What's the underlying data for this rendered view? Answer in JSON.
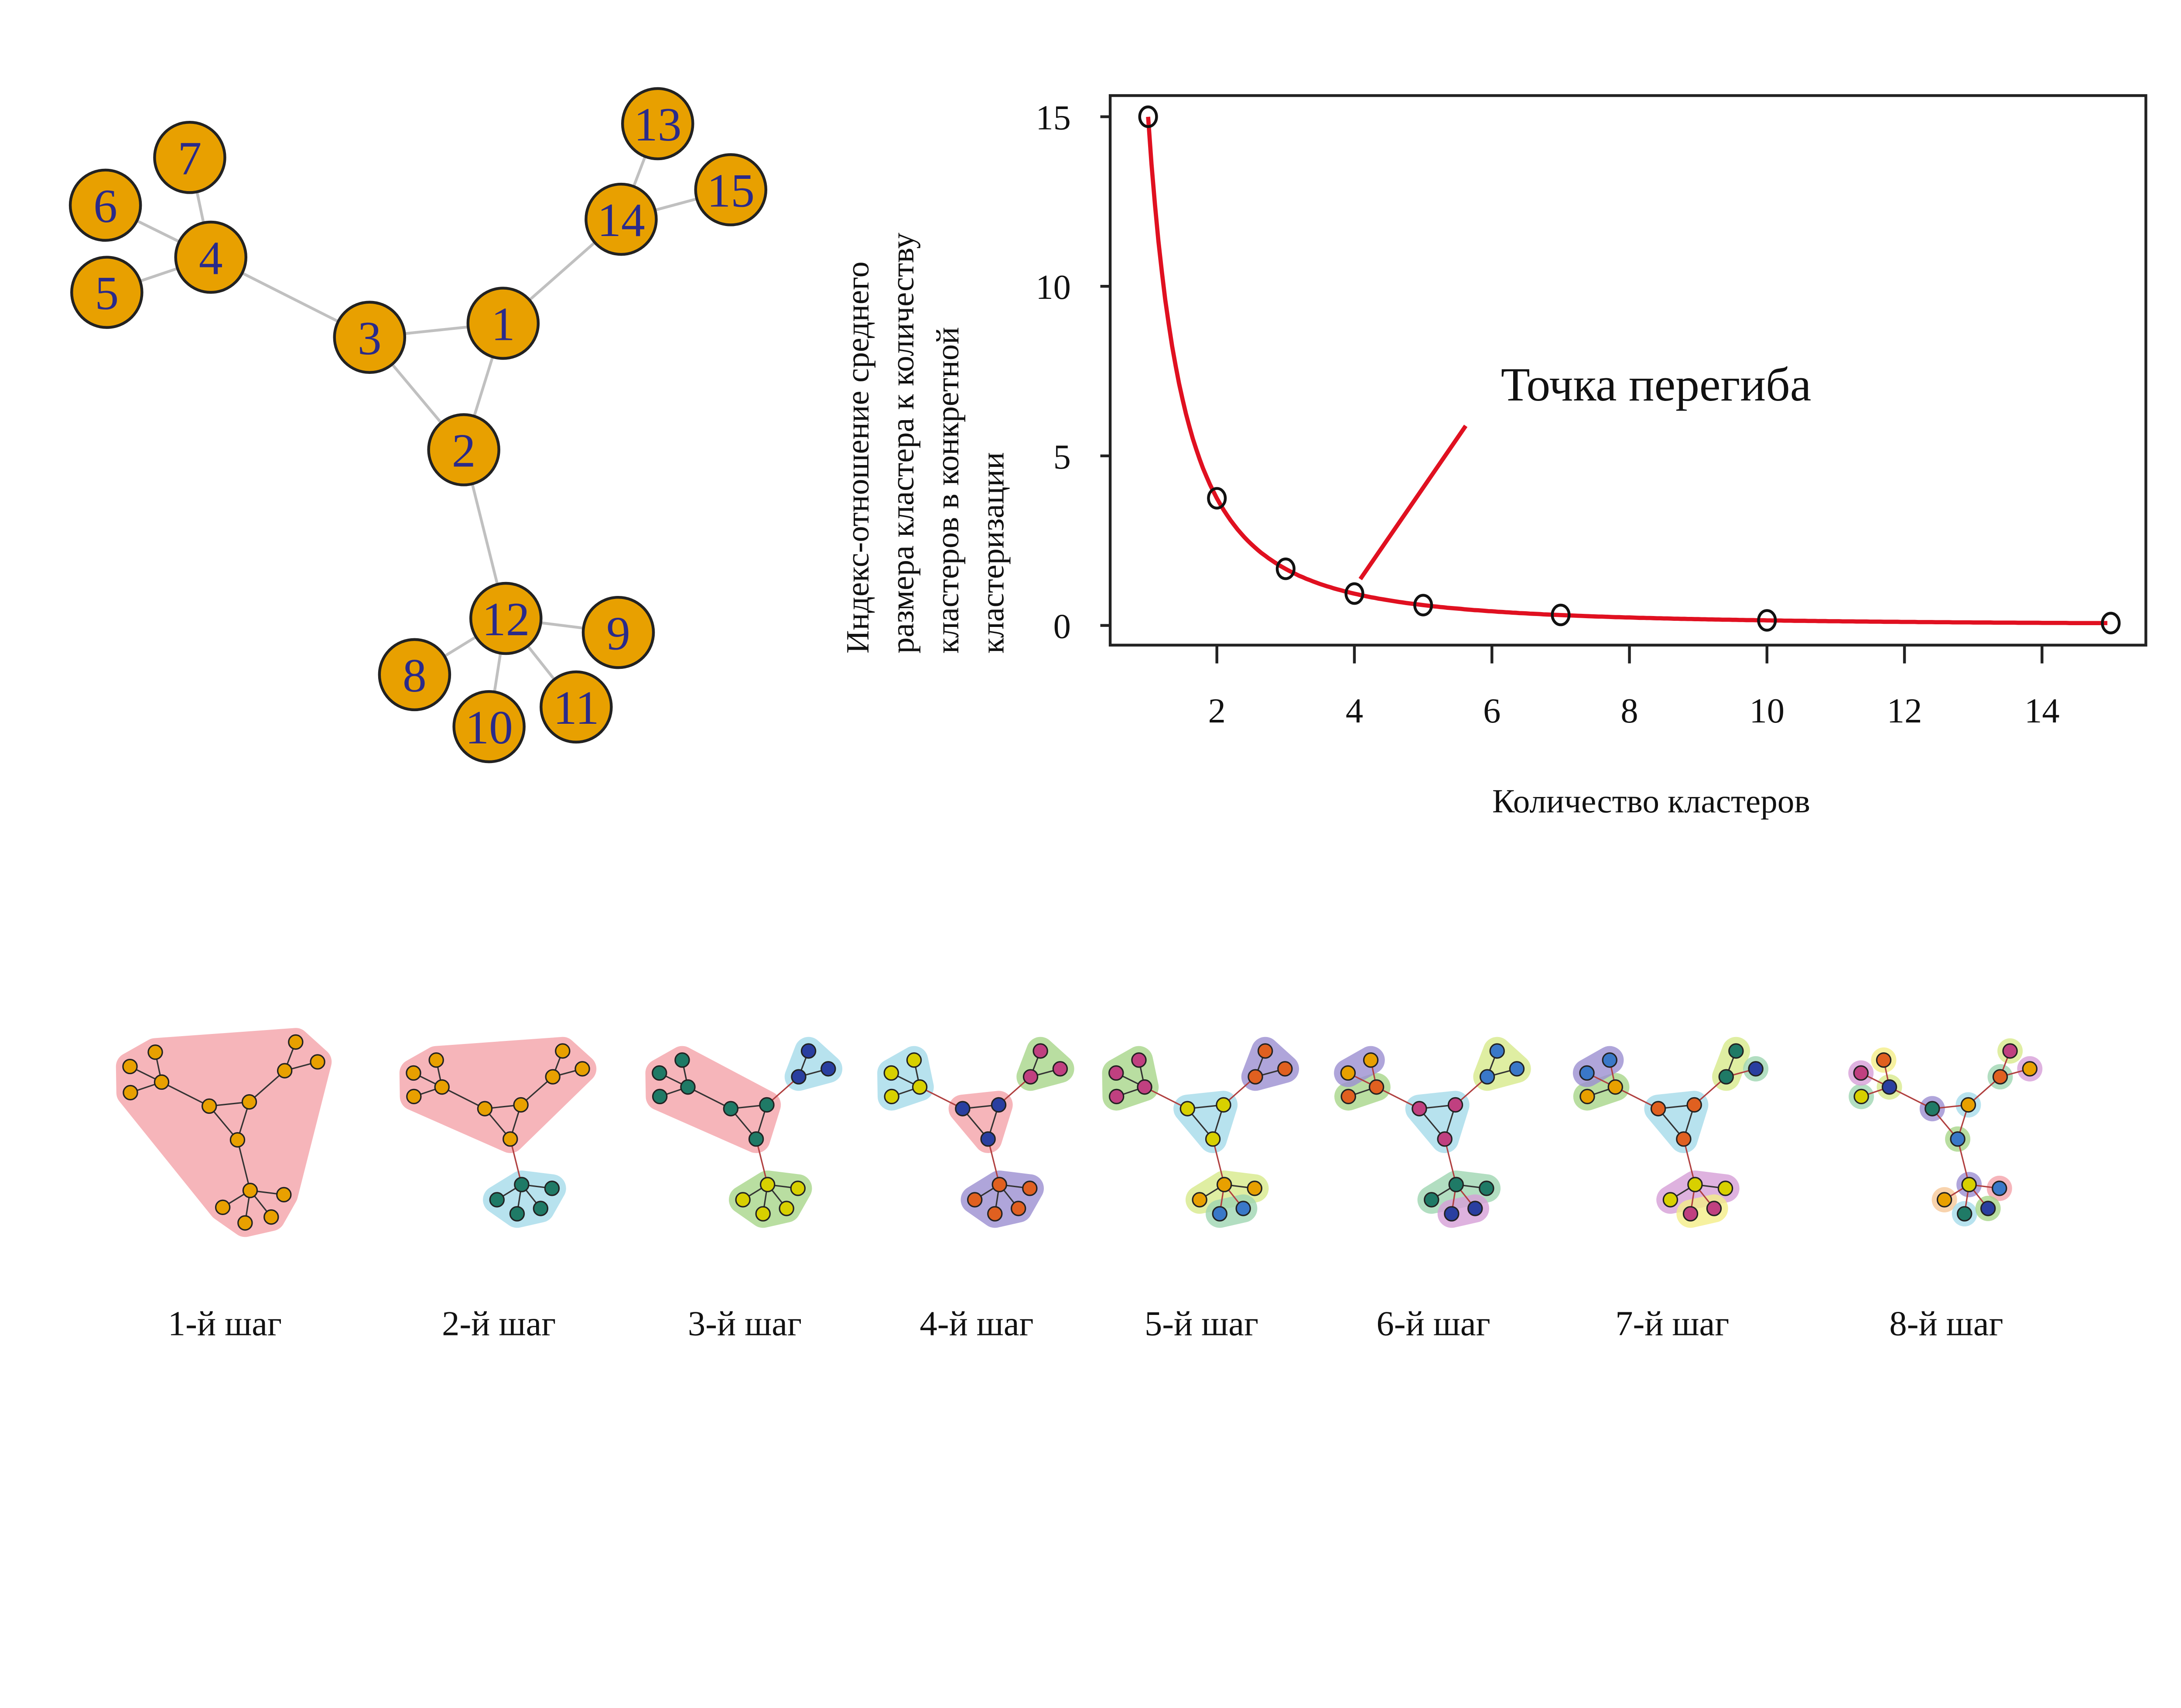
{
  "network": {
    "node_color": "#e8a000",
    "node_label_color": "#2a2a8a",
    "edge_color": "#c0c0c0",
    "nodes": [
      "1",
      "2",
      "3",
      "4",
      "5",
      "6",
      "7",
      "8",
      "9",
      "10",
      "11",
      "12",
      "13",
      "14",
      "15"
    ],
    "edges": [
      [
        "4",
        "6"
      ],
      [
        "4",
        "5"
      ],
      [
        "4",
        "7"
      ],
      [
        "4",
        "3"
      ],
      [
        "3",
        "1"
      ],
      [
        "3",
        "2"
      ],
      [
        "1",
        "2"
      ],
      [
        "1",
        "14"
      ],
      [
        "14",
        "13"
      ],
      [
        "14",
        "15"
      ],
      [
        "2",
        "12"
      ],
      [
        "12",
        "8"
      ],
      [
        "12",
        "9"
      ],
      [
        "12",
        "10"
      ],
      [
        "12",
        "11"
      ]
    ]
  },
  "chart_data": {
    "type": "line",
    "title": "",
    "xlabel": "Количество кластеров",
    "ylabel_lines": [
      "Индекс-отношение среднего",
      "размера кластера к количеству",
      "кластеров в конкретной",
      "кластеризации"
    ],
    "x": [
      1,
      2,
      3,
      4,
      5,
      7,
      10,
      15
    ],
    "y": [
      15,
      3.75,
      1.67,
      0.94,
      0.6,
      0.31,
      0.15,
      0.07
    ],
    "xlim": [
      1,
      15
    ],
    "ylim": [
      0,
      15
    ],
    "x_ticks": [
      "2",
      "4",
      "6",
      "8",
      "10",
      "12",
      "14"
    ],
    "y_ticks": [
      "0",
      "5",
      "10",
      "15"
    ],
    "grid": false,
    "line_color": "#e01020",
    "marker": "open-circle",
    "annotation": {
      "text": "Точка перегиба",
      "x": 4,
      "y": 0.94
    }
  },
  "steps": {
    "labels": [
      "1-й шаг",
      "2-й шаг",
      "3-й шаг",
      "4-й шаг",
      "5-й шаг",
      "6-й шаг",
      "7-й шаг",
      "8-й шаг"
    ],
    "cluster_colors": [
      "#f4a3aa",
      "#a6dceb",
      "#a8d68a",
      "#9c8fd2",
      "#d8ea8c",
      "#9fd6b2",
      "#d79fd8",
      "#f4ee88",
      "#f6c898"
    ]
  }
}
